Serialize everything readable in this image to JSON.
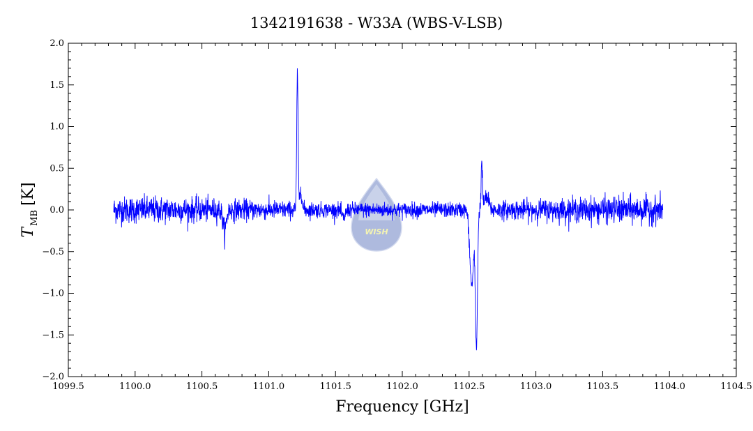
{
  "chart_data": {
    "type": "line",
    "title": "1342191638 - W33A (WBS-V-LSB)",
    "xlabel": "Frequency [GHz]",
    "ylabel": {
      "main": "T",
      "sub": "MB",
      "unit": "[K]"
    },
    "xlim": [
      1099.5,
      1104.5
    ],
    "ylim": [
      -2.0,
      2.0
    ],
    "x_ticks": [
      "1099.5",
      "1100.0",
      "1100.5",
      "1101.0",
      "1101.5",
      "1102.0",
      "1102.5",
      "1103.0",
      "1103.5",
      "1104.0",
      "1104.5"
    ],
    "y_ticks": [
      "2.0",
      "1.5",
      "1.0",
      "0.5",
      "0.0",
      "−0.5",
      "−1.0",
      "−1.5",
      "−2.0"
    ],
    "grid": false,
    "line_color": "#0000ff",
    "series": [
      {
        "x_range": [
          1099.84,
          1103.95
        ],
        "noise_rms_edges": 0.08,
        "noise_rms_center": 0.045,
        "features": [
          {
            "type": "emission",
            "x": 1101.215,
            "peak": 1.66,
            "fwhm_ghz": 0.012
          },
          {
            "type": "emission",
            "x": 1101.24,
            "peak": 0.25,
            "fwhm_ghz": 0.02
          },
          {
            "type": "absorption",
            "x": 1102.555,
            "depth": -1.62,
            "fwhm_ghz": 0.018
          },
          {
            "type": "absorption",
            "x": 1102.52,
            "depth": -0.9,
            "fwhm_ghz": 0.035
          },
          {
            "type": "emission",
            "x": 1102.595,
            "peak": 0.55,
            "fwhm_ghz": 0.012
          },
          {
            "type": "emission",
            "x": 1102.63,
            "peak": 0.15,
            "fwhm_ghz": 0.04
          },
          {
            "type": "absorption",
            "x": 1100.67,
            "depth": -0.25,
            "fwhm_ghz": 0.03
          },
          {
            "type": "absorption",
            "x": 1101.56,
            "depth": -0.1,
            "fwhm_ghz": 0.03
          }
        ]
      }
    ]
  },
  "watermark": {
    "text": "WISH",
    "color": "#8fa3d6"
  }
}
